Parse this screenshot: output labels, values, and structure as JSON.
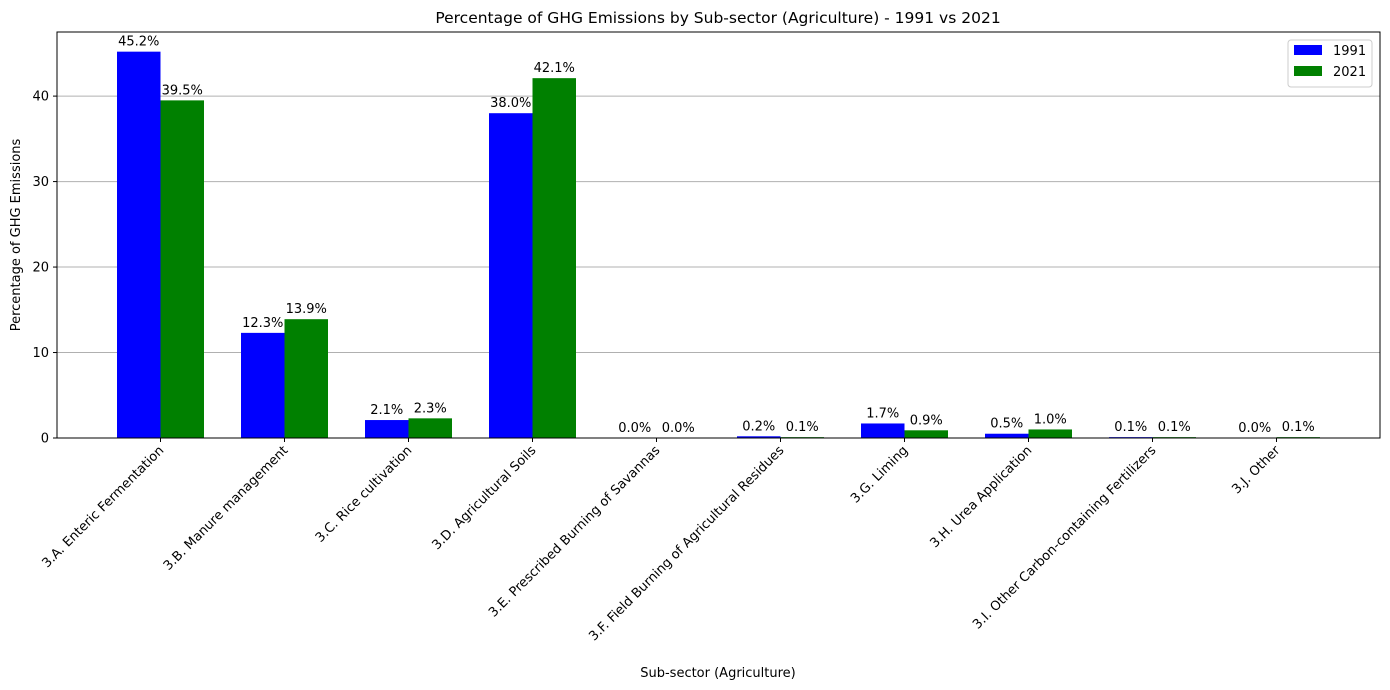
{
  "chart_data": {
    "type": "bar",
    "title": "Percentage of GHG Emissions by Sub-sector (Agriculture) - 1991 vs 2021",
    "xlabel": "Sub-sector (Agriculture)",
    "ylabel": "Percentage of GHG Emissions",
    "ylim": [
      0,
      47.5
    ],
    "yticks": [
      0,
      10,
      20,
      30,
      40
    ],
    "grid": "y",
    "legend_position": "top-right",
    "categories": [
      "3.A. Enteric Fermentation",
      "3.B. Manure management",
      "3.C. Rice cultivation",
      "3.D. Agricultural Soils",
      "3.E. Prescribed Burning of Savannas",
      "3.F. Field Burning of Agricultural Residues",
      "3.G. Liming",
      "3.H. Urea Application",
      "3.I. Other Carbon-containing Fertilizers",
      "3.J. Other"
    ],
    "series": [
      {
        "name": "1991",
        "color": "#0000ff",
        "values": [
          45.2,
          12.3,
          2.1,
          38.0,
          0.0,
          0.2,
          1.7,
          0.5,
          0.1,
          0.0
        ],
        "labels": [
          "45.2%",
          "12.3%",
          "2.1%",
          "38.0%",
          "0.0%",
          "0.2%",
          "1.7%",
          "0.5%",
          "0.1%",
          "0.0%"
        ]
      },
      {
        "name": "2021",
        "color": "#008000",
        "values": [
          39.5,
          13.9,
          2.3,
          42.1,
          0.0,
          0.1,
          0.9,
          1.0,
          0.1,
          0.1
        ],
        "labels": [
          "39.5%",
          "13.9%",
          "2.3%",
          "42.1%",
          "0.0%",
          "0.1%",
          "0.9%",
          "1.0%",
          "0.1%",
          "0.1%"
        ]
      }
    ]
  }
}
